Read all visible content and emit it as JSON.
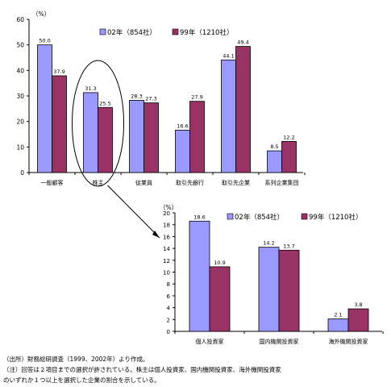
{
  "colors": {
    "series_02": "#9999ff",
    "series_99": "#993366",
    "axis": "#000000",
    "highlight": "#000000"
  },
  "chart_data": [
    {
      "type": "bar",
      "unit_label": "（%）",
      "ylim": [
        0,
        60
      ],
      "yticks": [
        0,
        10,
        20,
        30,
        40,
        50,
        60
      ],
      "grid": false,
      "legend_position": "top-right",
      "categories": [
        "一般顧客",
        "株主",
        "従業員",
        "取引先銀行",
        "取引先企業",
        "系列企業集団"
      ],
      "series": [
        {
          "name": "02年（854社）",
          "values": [
            50.0,
            31.3,
            28.3,
            16.6,
            44.1,
            8.5
          ]
        },
        {
          "name": "99年（1210社）",
          "values": [
            37.9,
            25.5,
            27.3,
            27.9,
            49.4,
            12.2
          ]
        }
      ],
      "highlighted_category": "株主"
    },
    {
      "type": "bar",
      "unit_label": "（%）",
      "ylim": [
        0,
        20
      ],
      "yticks": [
        0,
        2,
        4,
        6,
        8,
        10,
        12,
        14,
        16,
        18,
        20
      ],
      "grid": false,
      "legend_position": "top-right",
      "categories": [
        "個人投資家",
        "国内機関投資家",
        "海外機関投資家"
      ],
      "series": [
        {
          "name": "02年（854社）",
          "values": [
            18.6,
            14.2,
            2.1
          ]
        },
        {
          "name": "99年（1210社）",
          "values": [
            10.9,
            13.7,
            3.8
          ]
        }
      ]
    }
  ],
  "notes": {
    "source": "（出所）財務総研調査（1999、2002年）より作成。",
    "note1": "（注）回答は２項目までの選択が許されている。株主は個人投資家、国内機関投資家、海外機関投資家",
    "note2": "のいずれか１つ以上を選択した企業の割合を示している。"
  }
}
